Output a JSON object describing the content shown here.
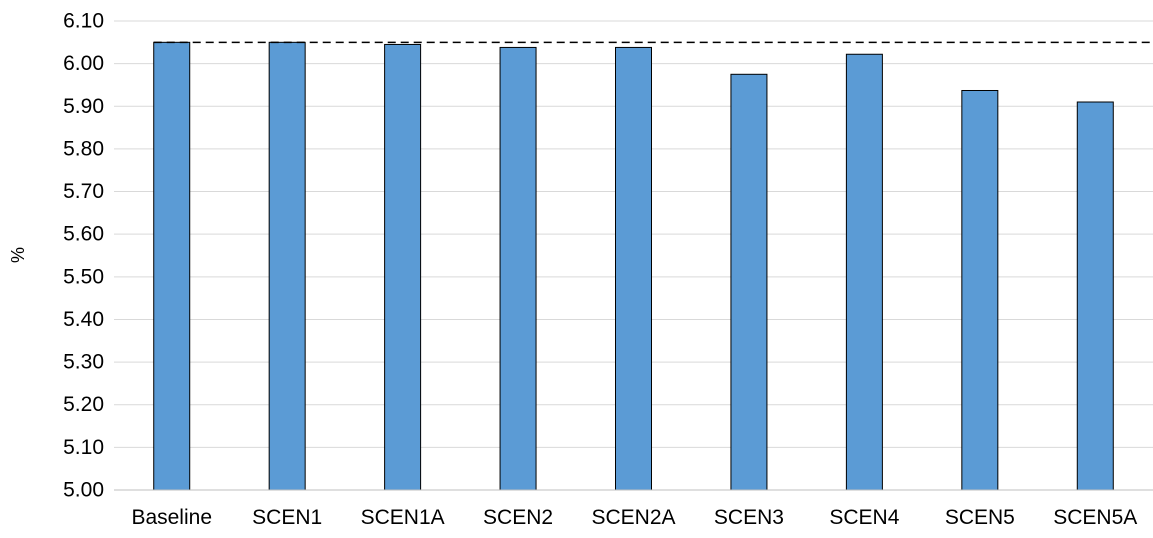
{
  "chart_data": {
    "type": "bar",
    "title": "",
    "xlabel": "",
    "ylabel": "%",
    "categories": [
      "Baseline",
      "SCEN1",
      "SCEN1A",
      "SCEN2",
      "SCEN2A",
      "SCEN3",
      "SCEN4",
      "SCEN5",
      "SCEN5A"
    ],
    "values": [
      6.05,
      6.05,
      6.045,
      6.038,
      6.038,
      5.975,
      6.022,
      5.937,
      5.91
    ],
    "ylim": [
      5.0,
      6.1
    ],
    "yticks": [
      "5.00",
      "5.10",
      "5.20",
      "5.30",
      "5.40",
      "5.50",
      "5.60",
      "5.70",
      "5.80",
      "5.90",
      "6.00",
      "6.10"
    ],
    "reference_line": {
      "value": 6.05,
      "style": "dashed"
    },
    "grid": true,
    "legend": "none",
    "colors": {
      "bar_fill": "#5b9bd5",
      "bar_stroke": "#000000",
      "grid": "#d9d9d9",
      "axis": "#bfbfbf",
      "reference_line": "#000000"
    }
  }
}
